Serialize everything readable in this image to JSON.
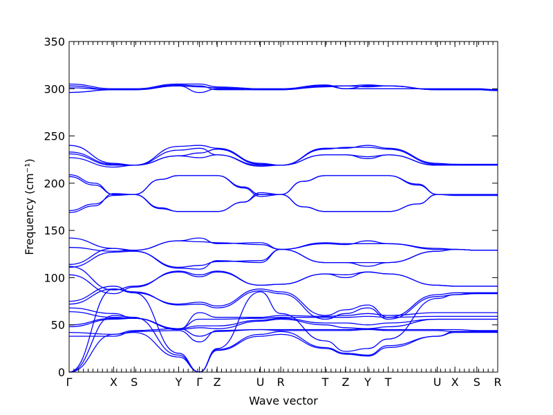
{
  "chart_data": {
    "type": "line",
    "title": "",
    "xlabel": "Wave vector",
    "ylabel": "Frequency (cm⁻¹)",
    "ylim": [
      0,
      350
    ],
    "yticks": [
      0,
      50,
      100,
      150,
      200,
      250,
      300,
      350
    ],
    "grid": false,
    "legend": "none",
    "series_color": "#0000ff",
    "xlim": [
      0,
      20.15
    ],
    "kpoints": [
      {
        "label": "Γ",
        "x": 0
      },
      {
        "label": "X",
        "x": 2.09
      },
      {
        "label": "S",
        "x": 3.06
      },
      {
        "label": "Y",
        "x": 5.15
      },
      {
        "label": "Γ",
        "x": 6.13
      },
      {
        "label": "Z",
        "x": 6.96
      },
      {
        "label": "U",
        "x": 8.99
      },
      {
        "label": "R",
        "x": 9.95
      },
      {
        "label": "T",
        "x": 12.04
      },
      {
        "label": "Z",
        "x": 13.0
      },
      {
        "label": "Y",
        "x": 14.04
      },
      {
        "label": "T",
        "x": 15.0
      },
      {
        "label": "U",
        "x": 17.31
      },
      {
        "label": "X",
        "x": 18.14
      },
      {
        "label": "S",
        "x": 19.17
      },
      {
        "label": "R",
        "x": 20.15
      }
    ],
    "series": [
      {
        "x": [
          0,
          2.09,
          3.06,
          5.15,
          6.13,
          6.96,
          8.99,
          9.95,
          12.04,
          13.0,
          14.04,
          15.0,
          17.31,
          18.14,
          19.17,
          20.15
        ],
        "values": [
          296,
          299,
          299,
          303,
          296,
          300,
          299,
          299,
          303,
          303,
          304,
          303,
          299,
          299,
          299,
          298
        ]
      },
      {
        "x": [
          0,
          2.09,
          3.06,
          5.15,
          6.13,
          6.96,
          8.99,
          9.95,
          12.04,
          13.0,
          14.04,
          15.0,
          17.31,
          18.14,
          19.17,
          20.15
        ],
        "values": [
          305,
          300,
          300,
          305,
          305,
          302,
          300,
          300,
          304,
          300,
          300,
          300,
          300,
          300,
          300,
          299
        ]
      },
      {
        "x": [
          0,
          2.09,
          3.06,
          5.15,
          6.13,
          6.96,
          8.99,
          9.95,
          12.04,
          13.0,
          14.04,
          15.0,
          17.31,
          18.14,
          19.17,
          20.15
        ],
        "values": [
          303,
          299,
          299,
          304,
          303,
          299,
          299,
          299,
          303,
          300,
          303,
          303,
          299,
          299,
          299,
          299
        ]
      },
      {
        "x": [
          0,
          2.09,
          3.06,
          5.15,
          6.13,
          6.96,
          8.99,
          9.95,
          12.04,
          13.0,
          14.04,
          15.0,
          17.31,
          18.14,
          19.17,
          20.15
        ],
        "values": [
          301,
          299,
          299,
          303,
          302,
          301,
          299,
          299,
          302,
          303,
          302,
          303,
          299,
          299,
          299,
          298
        ]
      },
      {
        "x": [
          0,
          2.09,
          3.06,
          5.15,
          6.13,
          6.96,
          8.99,
          9.95,
          12.04,
          13.0,
          14.04,
          15.0,
          17.31,
          18.14,
          19.17,
          20.15
        ],
        "values": [
          240,
          221,
          219,
          239,
          240,
          237,
          221,
          219,
          237,
          237,
          240,
          237,
          221,
          220,
          220,
          220
        ]
      },
      {
        "x": [
          0,
          2.09,
          3.06,
          5.15,
          6.13,
          6.96,
          8.99,
          9.95,
          12.04,
          13.0,
          14.04,
          15.0,
          17.31,
          18.14,
          19.17,
          20.15
        ],
        "values": [
          233,
          220,
          219,
          229,
          232,
          236,
          220,
          219,
          236,
          238,
          238,
          236,
          220,
          220,
          219,
          219
        ]
      },
      {
        "x": [
          0,
          2.09,
          3.06,
          5.15,
          6.13,
          6.96,
          8.99,
          9.95,
          12.04,
          13.0,
          14.04,
          15.0,
          17.31,
          18.14,
          19.17,
          20.15
        ],
        "values": [
          227,
          217,
          219,
          229,
          227,
          230,
          218,
          219,
          230,
          230,
          226,
          230,
          219,
          219,
          219,
          219
        ]
      },
      {
        "x": [
          0,
          2.09,
          3.06,
          5.15,
          6.13,
          6.96,
          8.99,
          9.95,
          12.04,
          13.0,
          14.04,
          15.0,
          17.31,
          18.14,
          19.17,
          20.15
        ],
        "values": [
          231,
          219,
          219,
          235,
          237,
          230,
          219,
          219,
          230,
          230,
          228,
          230,
          219,
          219,
          219,
          219
        ]
      },
      {
        "x": [
          0,
          1.2,
          2.09,
          3.06,
          4.3,
          5.15,
          6.13,
          6.96,
          8.2,
          8.99,
          9.95,
          11.0,
          12.04,
          13.0,
          14.04,
          15.0,
          16.4,
          17.31,
          18.14,
          19.17,
          20.15
        ],
        "values": [
          209,
          200,
          188,
          188,
          204,
          208,
          208,
          208,
          196,
          188,
          188,
          202,
          208,
          208,
          208,
          208,
          199,
          188,
          188,
          188,
          188
        ]
      },
      {
        "x": [
          0,
          1.2,
          2.09,
          3.06,
          4.3,
          5.15,
          6.13,
          6.96,
          8.2,
          8.99,
          9.95,
          11.0,
          12.04,
          13.0,
          14.04,
          15.0,
          16.4,
          17.31,
          18.14,
          19.17,
          20.15
        ],
        "values": [
          207,
          198,
          188,
          188,
          204,
          208,
          208,
          208,
          195,
          186,
          188,
          202,
          208,
          208,
          208,
          208,
          198,
          188,
          187,
          187,
          187
        ]
      },
      {
        "x": [
          0,
          1.2,
          2.09,
          3.06,
          4.3,
          5.15,
          6.13,
          6.96,
          8.2,
          8.99,
          9.95,
          11.0,
          12.04,
          13.0,
          14.04,
          15.0,
          16.4,
          17.31,
          18.14,
          19.17,
          20.15
        ],
        "values": [
          169,
          176,
          189,
          188,
          174,
          170,
          170,
          170,
          180,
          190,
          188,
          175,
          170,
          170,
          170,
          170,
          178,
          188,
          188,
          188,
          188
        ]
      },
      {
        "x": [
          0,
          1.2,
          2.09,
          3.06,
          4.3,
          5.15,
          6.13,
          6.96,
          8.2,
          8.99,
          9.95,
          11.0,
          12.04,
          13.0,
          14.04,
          15.0,
          16.4,
          17.31,
          18.14,
          19.17,
          20.15
        ],
        "values": [
          171,
          178,
          187,
          188,
          173,
          170,
          170,
          170,
          180,
          188,
          188,
          175,
          170,
          170,
          170,
          170,
          178,
          188,
          188,
          188,
          188
        ]
      },
      {
        "x": [
          0,
          2.09,
          3.06,
          5.15,
          6.13,
          6.96,
          8.99,
          9.95,
          12.04,
          13.0,
          14.04,
          15.0,
          17.31,
          18.14,
          19.17,
          20.15
        ],
        "values": [
          142,
          131,
          129,
          139,
          142,
          136,
          137,
          130,
          136,
          135,
          139,
          136,
          130,
          130,
          129,
          129
        ]
      },
      {
        "x": [
          0,
          2.09,
          3.06,
          5.15,
          6.13,
          6.96,
          8.99,
          9.95,
          12.04,
          13.0,
          14.04,
          15.0,
          17.31,
          18.14,
          19.17,
          20.15
        ],
        "values": [
          132,
          128,
          129,
          139,
          138,
          137,
          135,
          130,
          137,
          136,
          136,
          136,
          131,
          130,
          129,
          129
        ]
      },
      {
        "x": [
          0,
          2.09,
          3.06,
          5.15,
          6.13,
          6.96,
          8.99,
          9.95,
          12.04,
          13.0,
          14.04,
          15.0,
          17.31,
          18.14,
          19.17,
          20.15
        ],
        "values": [
          114,
          131,
          128,
          111,
          113,
          117,
          118,
          130,
          116,
          116,
          112,
          116,
          128,
          130,
          129,
          129
        ]
      },
      {
        "x": [
          0,
          2.09,
          3.06,
          5.15,
          6.13,
          6.96,
          8.99,
          9.95,
          12.04,
          13.0,
          14.04,
          15.0,
          17.31,
          18.14,
          19.17,
          20.15
        ],
        "values": [
          111,
          127,
          128,
          110,
          109,
          118,
          116,
          130,
          116,
          116,
          116,
          116,
          128,
          130,
          129,
          129
        ]
      },
      {
        "x": [
          0,
          2.09,
          3.06,
          5.15,
          6.13,
          6.96,
          8.99,
          9.95,
          12.04,
          13.0,
          14.04,
          15.0,
          17.31,
          18.14,
          19.17,
          20.15
        ],
        "values": [
          103,
          83,
          90,
          107,
          103,
          107,
          92,
          93,
          104,
          103,
          106,
          104,
          92,
          91,
          91,
          91
        ]
      },
      {
        "x": [
          0,
          2.09,
          3.06,
          5.15,
          6.13,
          6.96,
          8.99,
          9.95,
          12.04,
          13.0,
          14.04,
          15.0,
          17.31,
          18.14,
          19.17,
          20.15
        ],
        "values": [
          112,
          87,
          91,
          106,
          101,
          106,
          92,
          93,
          104,
          100,
          106,
          104,
          92,
          91,
          91,
          91
        ]
      },
      {
        "x": [
          0,
          2.09,
          3.06,
          5.15,
          6.13,
          6.96,
          8.99,
          9.95,
          12.04,
          13.0,
          14.04,
          15.0,
          17.31,
          18.14,
          19.17,
          20.15
        ],
        "values": [
          75,
          91,
          84,
          72,
          74,
          70,
          88,
          85,
          60,
          66,
          71,
          58,
          82,
          84,
          84,
          84
        ]
      },
      {
        "x": [
          0,
          2.09,
          3.06,
          5.15,
          6.13,
          6.96,
          8.99,
          9.95,
          12.04,
          13.0,
          14.04,
          15.0,
          17.31,
          18.14,
          19.17,
          20.15
        ],
        "values": [
          72,
          88,
          85,
          71,
          72,
          68,
          86,
          83,
          56,
          62,
          68,
          56,
          80,
          82,
          83,
          83
        ]
      },
      {
        "x": [
          0,
          2.09,
          3.06,
          5.15,
          6.13,
          6.96,
          8.99,
          9.95,
          12.04,
          13.0,
          14.04,
          15.0,
          17.31,
          18.14,
          19.17,
          20.15
        ],
        "values": [
          68,
          62,
          57,
          45,
          63,
          58,
          58,
          60,
          59,
          60,
          62,
          60,
          63,
          63,
          63,
          63
        ]
      },
      {
        "x": [
          0,
          2.09,
          3.06,
          5.15,
          6.13,
          6.96,
          8.99,
          9.95,
          12.04,
          13.0,
          14.04,
          15.0,
          17.31,
          18.14,
          19.17,
          20.15
        ],
        "values": [
          64,
          58,
          57,
          46,
          56,
          56,
          57,
          58,
          58,
          58,
          59,
          58,
          59,
          59,
          59,
          59
        ]
      },
      {
        "x": [
          0,
          2.09,
          3.06,
          5.15,
          6.13,
          6.96,
          8.99,
          9.95,
          12.04,
          13.0,
          14.04,
          15.0,
          17.31,
          18.14,
          19.17,
          20.15
        ],
        "values": [
          50,
          57,
          57,
          46,
          49,
          49,
          55,
          57,
          52,
          52,
          50,
          52,
          56,
          56,
          56,
          56
        ]
      },
      {
        "x": [
          0,
          2.09,
          3.06,
          5.15,
          6.13,
          6.96,
          8.99,
          9.95,
          12.04,
          13.0,
          14.04,
          15.0,
          17.31,
          18.14,
          19.17,
          20.15
        ],
        "values": [
          48,
          56,
          57,
          45,
          47,
          46,
          54,
          56,
          50,
          47,
          46,
          48,
          56,
          56,
          56,
          56
        ]
      },
      {
        "x": [
          0,
          2.09,
          3.06,
          5.15,
          6.13,
          6.96,
          8.99,
          9.95,
          12.04,
          13.0,
          14.04,
          15.0,
          17.31,
          18.14,
          19.17,
          20.15
        ],
        "values": [
          42,
          40,
          44,
          46,
          38,
          43,
          45,
          45,
          45,
          45,
          46,
          45,
          45,
          45,
          44,
          44
        ]
      },
      {
        "x": [
          0,
          2.09,
          3.06,
          5.15,
          6.13,
          6.96,
          8.99,
          9.95,
          12.04,
          13.0,
          14.04,
          15.0,
          17.31,
          18.14,
          19.17,
          20.15
        ],
        "values": [
          38,
          38,
          43,
          44,
          32,
          44,
          45,
          44,
          44,
          44,
          45,
          44,
          44,
          43,
          43,
          43
        ]
      },
      {
        "x": [
          0,
          2.09,
          3.06,
          5.15,
          6.13,
          6.96,
          8.99,
          9.95,
          12.04,
          13.0,
          14.04,
          15.0,
          17.31,
          18.14,
          19.17,
          20.15
        ],
        "values": [
          0,
          88,
          84,
          20,
          0,
          25,
          85,
          62,
          33,
          22,
          25,
          35,
          78,
          82,
          84,
          84
        ]
      },
      {
        "x": [
          0,
          2.09,
          3.06,
          5.15,
          6.13,
          6.96,
          8.99,
          9.95,
          12.04,
          13.0,
          14.04,
          15.0,
          17.31,
          18.14,
          19.17,
          20.15
        ],
        "values": [
          0,
          60,
          58,
          18,
          0,
          24,
          40,
          43,
          26,
          20,
          18,
          28,
          38,
          42,
          42,
          42
        ]
      },
      {
        "x": [
          0,
          2.09,
          3.06,
          5.15,
          6.13,
          6.96,
          8.99,
          9.95,
          12.04,
          13.0,
          14.04,
          15.0,
          17.31,
          18.14,
          19.17,
          20.15
        ],
        "values": [
          0,
          40,
          42,
          16,
          0,
          23,
          38,
          40,
          25,
          19,
          17,
          26,
          38,
          43,
          43,
          43
        ]
      }
    ]
  }
}
